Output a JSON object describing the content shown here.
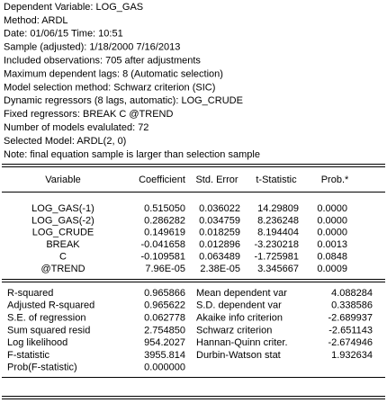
{
  "header": {
    "lines": [
      "Dependent Variable: LOG_GAS",
      "Method: ARDL",
      "Date: 01/06/15   Time: 10:51",
      "Sample (adjusted): 1/18/2000 7/16/2013",
      "Included observations: 705 after adjustments",
      "Maximum dependent lags: 8 (Automatic selection)",
      "Model selection method: Schwarz criterion (SIC)",
      "Dynamic regressors (8 lags, automatic): LOG_CRUDE",
      "Fixed regressors: BREAK C @TREND",
      "Number of models evalulated: 72",
      "Selected Model: ARDL(2, 0)",
      "Note: final equation sample is larger than selection sample"
    ]
  },
  "table": {
    "columns": [
      "Variable",
      "Coefficient",
      "Std. Error",
      "t-Statistic",
      "Prob.*"
    ],
    "rows": [
      [
        "LOG_GAS(-1)",
        "0.515050",
        "0.036022",
        "14.29809",
        "0.0000"
      ],
      [
        "LOG_GAS(-2)",
        "0.286282",
        "0.034759",
        "8.236248",
        "0.0000"
      ],
      [
        "LOG_CRUDE",
        "0.149619",
        "0.018259",
        "8.194404",
        "0.0000"
      ],
      [
        "BREAK",
        "-0.041658",
        "0.012896",
        "-3.230218",
        "0.0013"
      ],
      [
        "C",
        "-0.109581",
        "0.063489",
        "-1.725981",
        "0.0848"
      ],
      [
        "@TREND",
        "7.96E-05",
        "2.38E-05",
        "3.345667",
        "0.0009"
      ]
    ]
  },
  "statistics": {
    "rows": [
      [
        "R-squared",
        "0.965866",
        "Mean dependent var",
        "4.088284"
      ],
      [
        "Adjusted R-squared",
        "0.965622",
        "S.D. dependent var",
        "0.338586"
      ],
      [
        "S.E. of regression",
        "0.062778",
        "Akaike info criterion",
        "-2.689937"
      ],
      [
        "Sum squared resid",
        "2.754850",
        "Schwarz criterion",
        "-2.651143"
      ],
      [
        "Log likelihood",
        "954.2027",
        "Hannan-Quinn criter.",
        "-2.674946"
      ],
      [
        "F-statistic",
        "3955.814",
        "Durbin-Watson stat",
        "1.932634"
      ],
      [
        "Prob(F-statistic)",
        "0.000000"
      ]
    ]
  }
}
